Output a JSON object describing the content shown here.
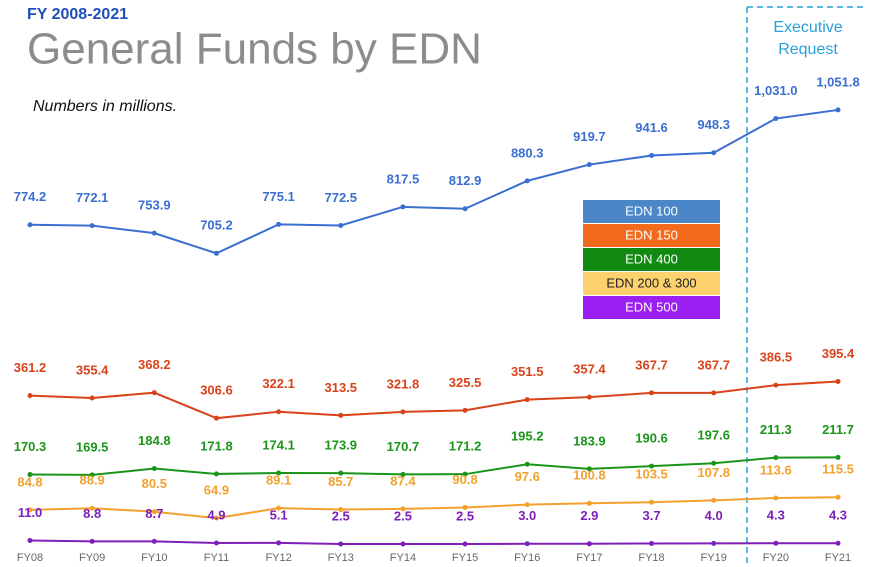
{
  "chart_data": {
    "type": "line",
    "subtitle": "FY 2008-2021",
    "title": "General Funds by EDN",
    "note": "Numbers in millions.",
    "annotation": "Executive Request",
    "categories": [
      "FY08",
      "FY09",
      "FY10",
      "FY11",
      "FY12",
      "FY13",
      "FY14",
      "FY15",
      "FY16",
      "FY17",
      "FY18",
      "FY19",
      "FY20",
      "FY21"
    ],
    "ylim": [
      0,
      1100
    ],
    "series": [
      {
        "name": "EDN 100",
        "color": "#3a6fd0",
        "legend_color": "#4a86c8",
        "values": [
          774.2,
          772.1,
          753.9,
          705.2,
          775.1,
          772.5,
          817.5,
          812.9,
          880.3,
          919.7,
          941.6,
          948.3,
          1031.0,
          1051.8
        ],
        "value_labels": [
          "774.2",
          "772.1",
          "753.9",
          "705.2",
          "775.1",
          "772.5",
          "817.5",
          "812.9",
          "880.3",
          "919.7",
          "941.6",
          "948.3",
          "1,031.0",
          "1,051.8"
        ]
      },
      {
        "name": "EDN 150",
        "color": "#d9431c",
        "legend_color": "#f26a1b",
        "values": [
          361.2,
          355.4,
          368.2,
          306.6,
          322.1,
          313.5,
          321.8,
          325.5,
          351.5,
          357.4,
          367.7,
          367.7,
          386.5,
          395.4
        ],
        "value_labels": [
          "361.2",
          "355.4",
          "368.2",
          "306.6",
          "322.1",
          "313.5",
          "321.8",
          "325.5",
          "351.5",
          "357.4",
          "367.7",
          "367.7",
          "386.5",
          "395.4"
        ]
      },
      {
        "name": "EDN 400",
        "color": "#1a951a",
        "legend_color": "#128a12",
        "values": [
          170.3,
          169.5,
          184.8,
          171.8,
          174.1,
          173.9,
          170.7,
          171.2,
          195.2,
          183.9,
          190.6,
          197.6,
          211.3,
          211.7
        ],
        "value_labels": [
          "170.3",
          "169.5",
          "184.8",
          "171.8",
          "174.1",
          "173.9",
          "170.7",
          "171.2",
          "195.2",
          "183.9",
          "190.6",
          "197.6",
          "211.3",
          "211.7"
        ]
      },
      {
        "name": "EDN 200 & 300",
        "color": "#f2a12c",
        "legend_color": "#fdd26e",
        "values": [
          84.8,
          88.9,
          80.5,
          64.9,
          89.1,
          85.7,
          87.4,
          90.8,
          97.6,
          100.8,
          103.5,
          107.8,
          113.6,
          115.5
        ],
        "value_labels": [
          "84.8",
          "88.9",
          "80.5",
          "64.9",
          "89.1",
          "85.7",
          "87.4",
          "90.8",
          "97.6",
          "100.8",
          "103.5",
          "107.8",
          "113.6",
          "115.5"
        ]
      },
      {
        "name": "EDN 500",
        "color": "#7d1fb8",
        "legend_color": "#9b1ff0",
        "values": [
          11.0,
          8.8,
          8.7,
          4.9,
          5.1,
          2.5,
          2.5,
          2.5,
          3.0,
          2.9,
          3.7,
          4.0,
          4.3,
          4.3
        ],
        "value_labels": [
          "11.0",
          "8.8",
          "8.7",
          "4.9",
          "5.1",
          "2.5",
          "2.5",
          "2.5",
          "3.0",
          "2.9",
          "3.7",
          "4.0",
          "4.3",
          "4.3"
        ]
      }
    ]
  }
}
